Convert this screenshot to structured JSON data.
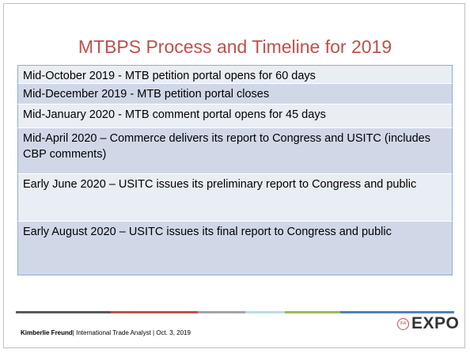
{
  "title": "MTBPS Process and Timeline for 2019",
  "table": {
    "rows": [
      "Mid-October 2019 - MTB petition portal opens for 60 days",
      "Mid-December 2019 - MTB petition portal closes",
      "Mid-January 2020 - MTB comment portal opens for 45 days",
      "Mid-April 2020 – Commerce delivers its report to Congress and USITC (includes CBP comments)",
      "Early June 2020 – USITC issues its preliminary report to Congress and public",
      "Early August 2020 – USITC issues its final report to Congress and public"
    ]
  },
  "footer": {
    "name": "Kimberlie Freund",
    "details": "| International Trade Analyst  | Oct. 3, 2019"
  },
  "logo": {
    "badge": "IFA",
    "text": "EXPO"
  }
}
